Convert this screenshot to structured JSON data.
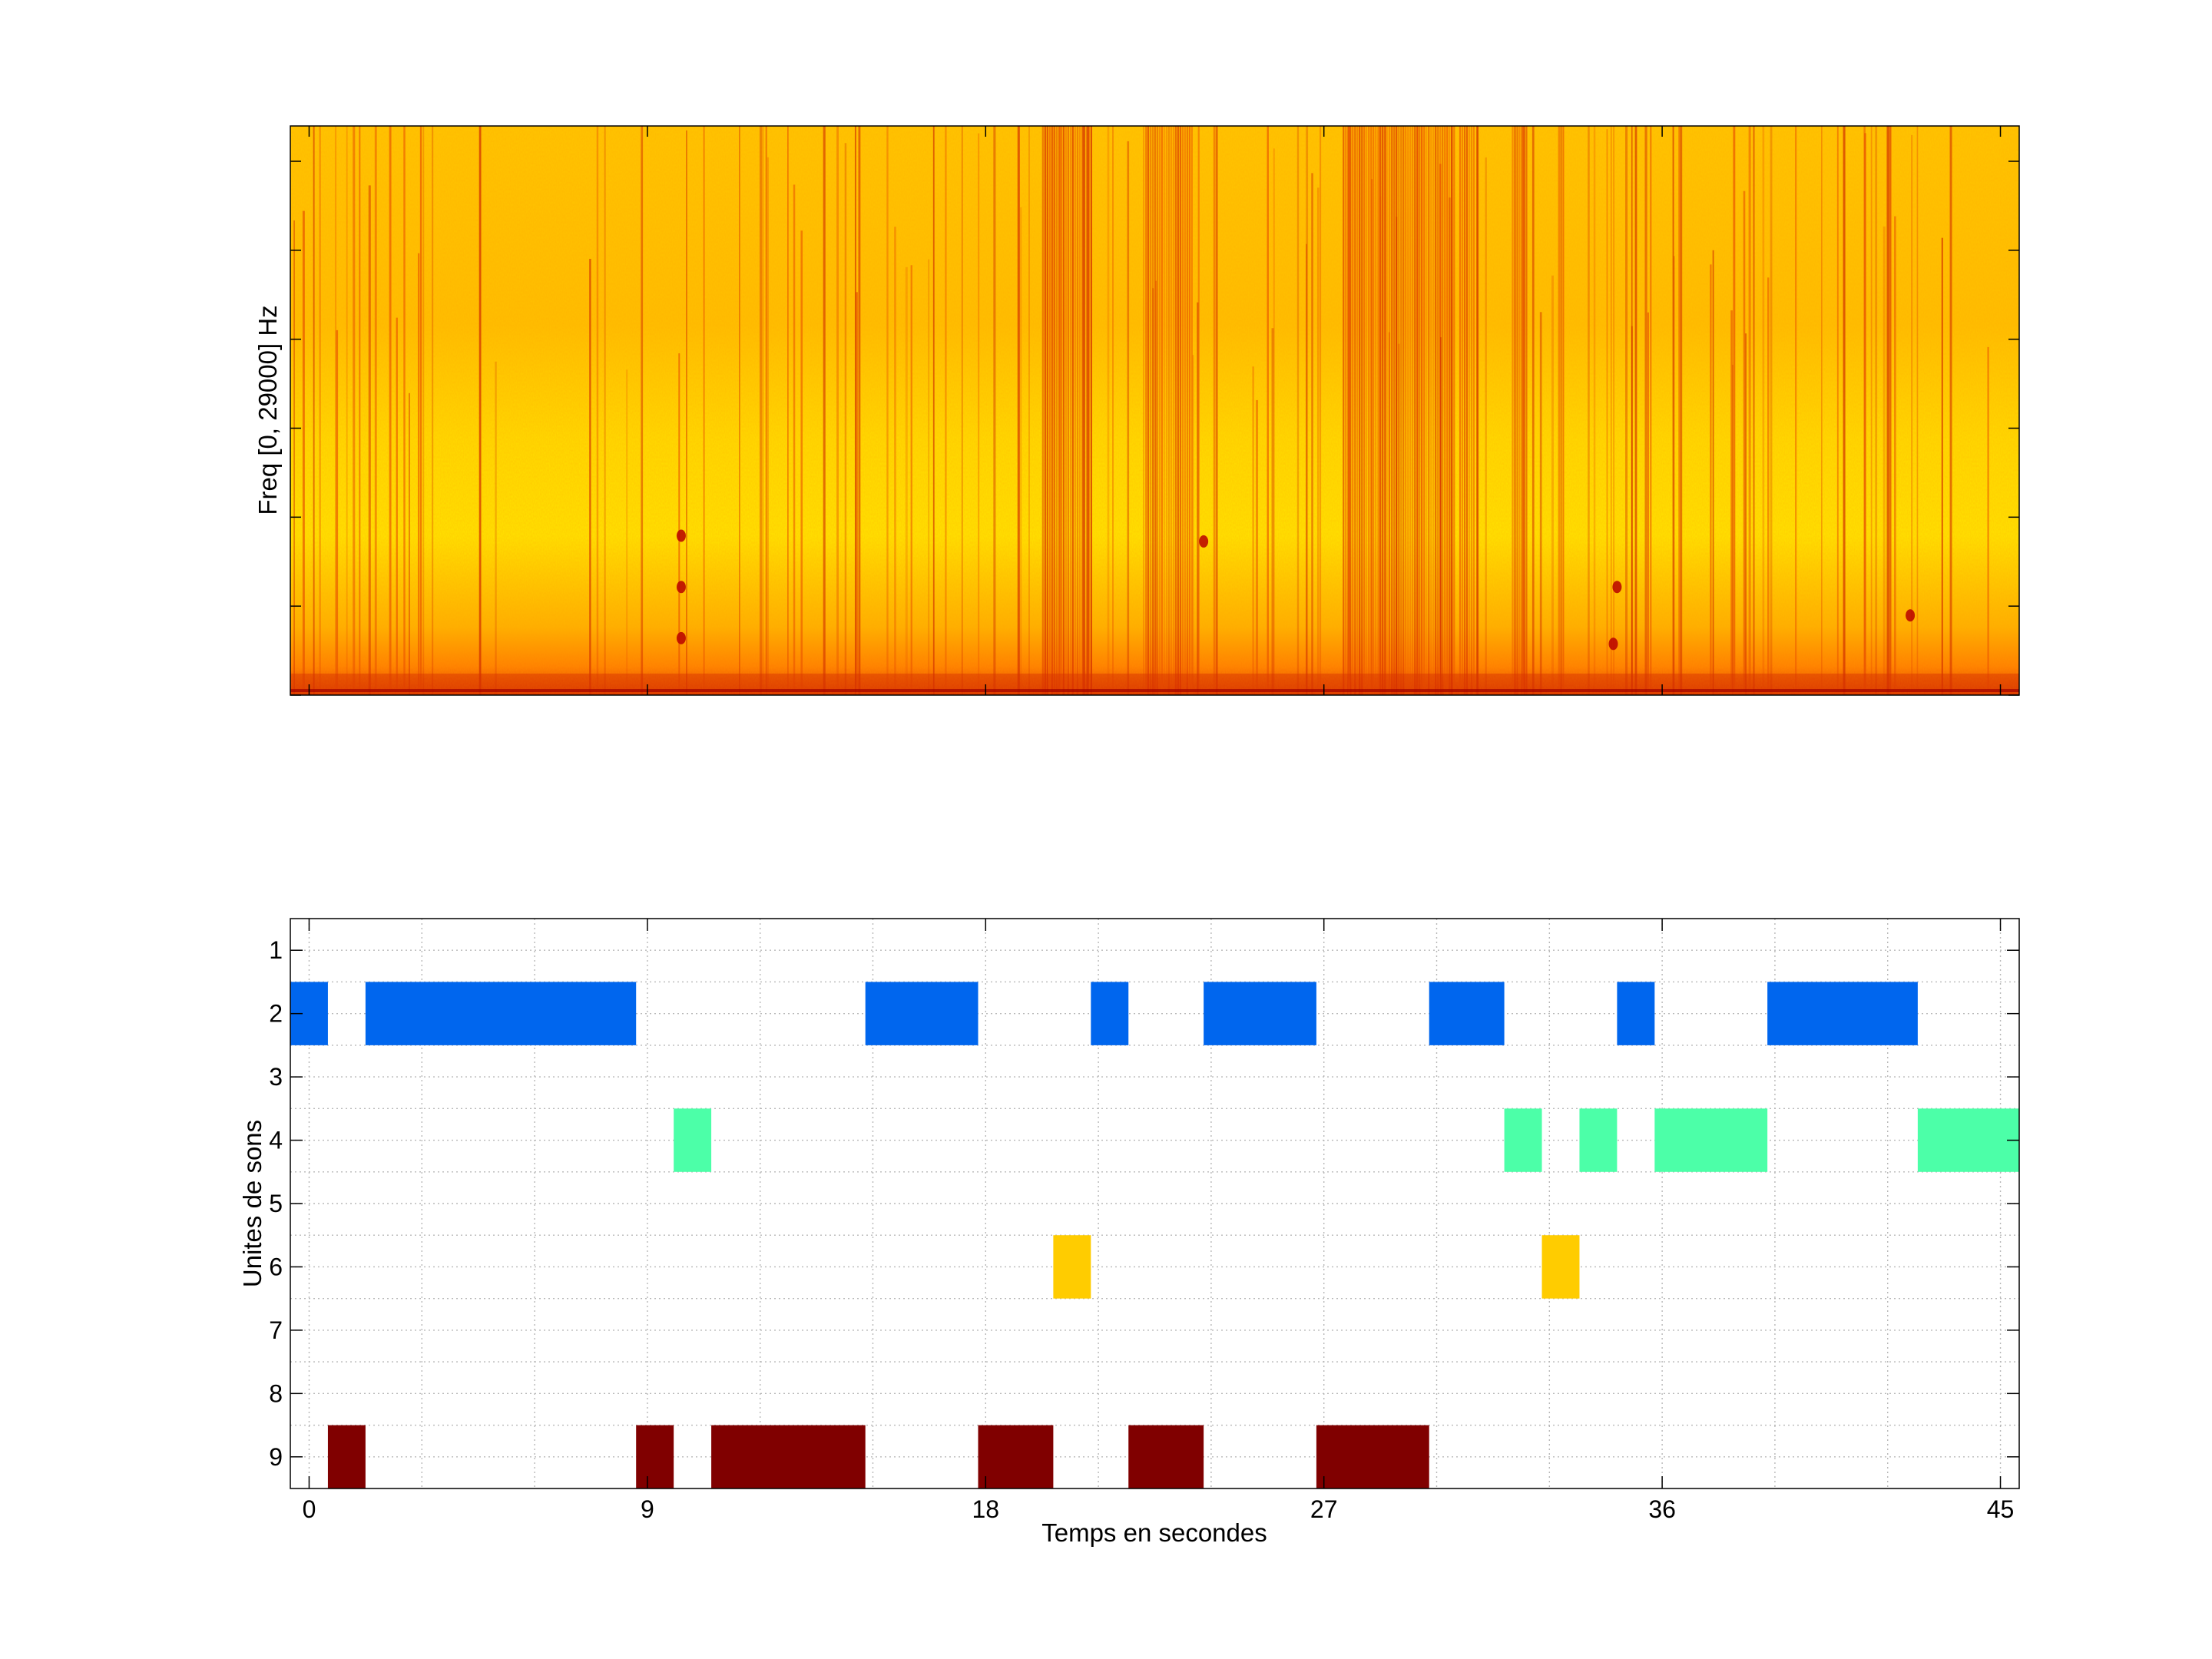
{
  "spectrogram": {
    "ylabel": "Freq [0, 29000] Hz",
    "colormap": [
      "#ffff00",
      "#ffc000",
      "#ff7000",
      "#e02000",
      "#a00000"
    ],
    "dark_bands_time_ranges_s": [
      [
        19.5,
        20.8
      ],
      [
        22.3,
        23.5
      ],
      [
        27.5,
        30.5
      ],
      [
        30.6,
        31.0
      ],
      [
        32.0,
        32.4
      ]
    ]
  },
  "chart_data": {
    "type": "bar",
    "subtype": "horizontal-interval-raster",
    "title": "",
    "xlabel": "Temps en secondes",
    "ylabel": "Unites de sons",
    "xlim": [
      -0.5,
      45.5
    ],
    "ylim": [
      0.5,
      9.5
    ],
    "xticks": [
      "0",
      "9",
      "18",
      "27",
      "36",
      "45"
    ],
    "yticks": [
      "1",
      "2",
      "3",
      "4",
      "5",
      "6",
      "7",
      "8",
      "9"
    ],
    "grid": true,
    "units": [
      {
        "unit": 2,
        "color": "#0066ee",
        "intervals": [
          [
            -0.5,
            0.5
          ],
          [
            1.5,
            8.7
          ],
          [
            14.8,
            17.8
          ],
          [
            20.8,
            21.8
          ],
          [
            23.8,
            26.8
          ],
          [
            29.8,
            31.8
          ],
          [
            34.8,
            35.8
          ],
          [
            38.8,
            42.8
          ]
        ]
      },
      {
        "unit": 4,
        "color": "#4cffa8",
        "intervals": [
          [
            9.7,
            10.7
          ],
          [
            31.8,
            32.8
          ],
          [
            33.8,
            34.8
          ],
          [
            35.8,
            38.8
          ],
          [
            42.8,
            45.5
          ]
        ]
      },
      {
        "unit": 6,
        "color": "#ffcc00",
        "intervals": [
          [
            19.8,
            20.8
          ],
          [
            32.8,
            33.8
          ]
        ]
      },
      {
        "unit": 9,
        "color": "#800000",
        "intervals": [
          [
            0.5,
            1.5
          ],
          [
            8.7,
            9.7
          ],
          [
            10.7,
            14.8
          ],
          [
            17.8,
            19.8
          ],
          [
            21.8,
            23.8
          ],
          [
            26.8,
            29.8
          ]
        ]
      }
    ]
  }
}
